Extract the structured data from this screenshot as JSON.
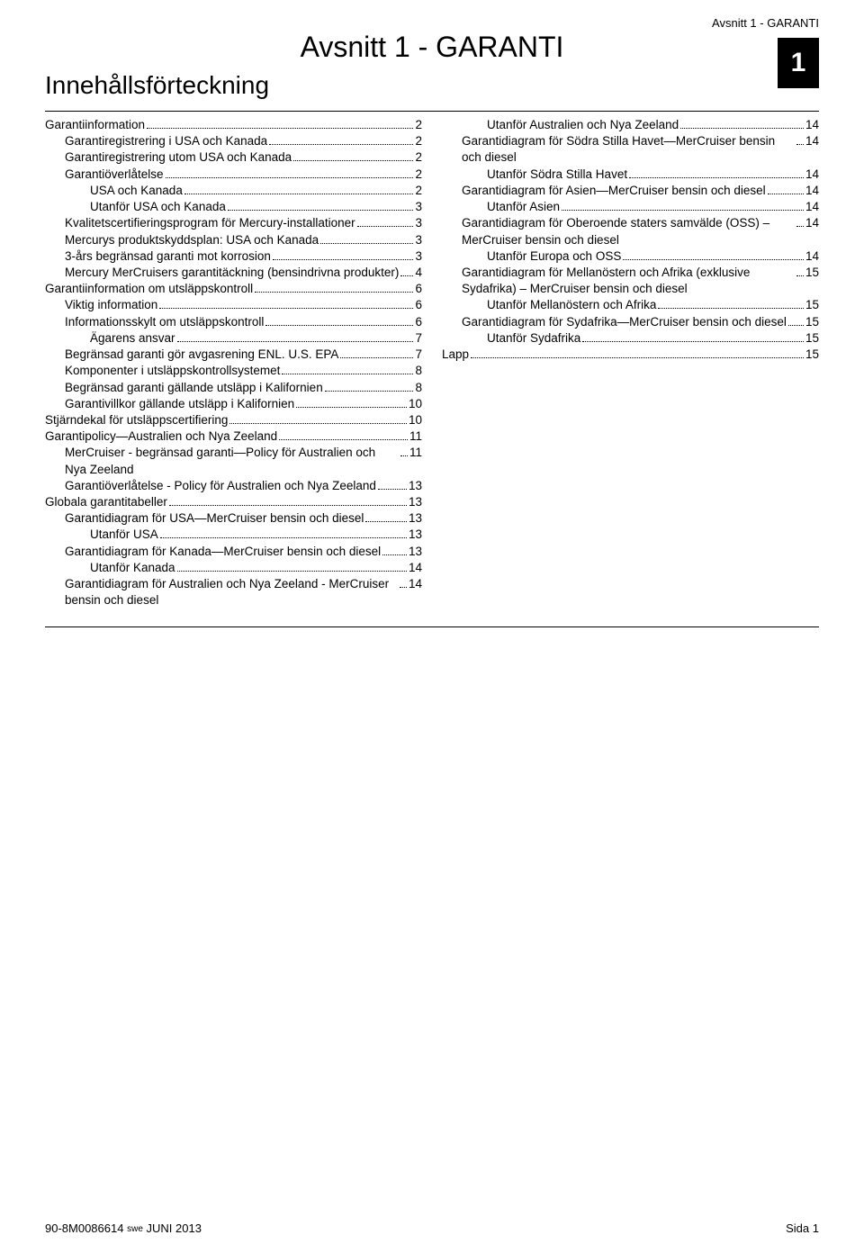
{
  "header": {
    "running_head": "Avsnitt 1 - GARANTI",
    "section_title": "Avsnitt 1 - GARANTI",
    "toc_title": "Innehållsförteckning",
    "page_badge": "1"
  },
  "footer": {
    "doc_id": "90-8M0086614",
    "lang": "swe",
    "date": "JUNI  2013",
    "page_label": "Sida  1"
  },
  "toc": [
    {
      "indent": 0,
      "label": "Garantiinformation",
      "page": "2"
    },
    {
      "indent": 1,
      "label": "Garantiregistrering i USA och Kanada",
      "page": "2"
    },
    {
      "indent": 1,
      "label": "Garantiregistrering utom USA och Kanada",
      "page": "2"
    },
    {
      "indent": 1,
      "label": "Garantiöverlåtelse",
      "page": "2"
    },
    {
      "indent": 2,
      "label": "USA och Kanada",
      "page": "2"
    },
    {
      "indent": 2,
      "label": "Utanför USA och Kanada",
      "page": "3"
    },
    {
      "indent": 1,
      "label": "Kvalitetscertifieringsprogram för Mercury‑installationer",
      "page": "3"
    },
    {
      "indent": 1,
      "label": "Mercurys produktskyddsplan: USA och Kanada",
      "page": "3"
    },
    {
      "indent": 1,
      "label": "3‑års begränsad garanti mot korrosion",
      "page": "3"
    },
    {
      "indent": 1,
      "label": "Mercury MerCruisers garantitäckning (bensindrivna produkter)",
      "page": "4"
    },
    {
      "indent": 0,
      "label": "Garantiinformation om utsläppskontroll",
      "page": "6"
    },
    {
      "indent": 1,
      "label": "Viktig information",
      "page": "6"
    },
    {
      "indent": 1,
      "label": "Informationsskylt om utsläppskontroll",
      "page": "6"
    },
    {
      "indent": 2,
      "label": "Ägarens ansvar",
      "page": "7"
    },
    {
      "indent": 1,
      "label": "Begränsad garanti gör avgasrening ENL. U.S. EPA",
      "page": "7"
    },
    {
      "indent": 1,
      "label": "Komponenter i utsläppskontrollsystemet",
      "page": "8"
    },
    {
      "indent": 1,
      "label": "Begränsad garanti gällande utsläpp i Kalifornien",
      "page": "8"
    },
    {
      "indent": 1,
      "label": "Garantivillkor gällande utsläpp i Kalifornien",
      "page": "10"
    },
    {
      "indent": 0,
      "label": "Stjärndekal för utsläppscertifiering",
      "page": "10"
    },
    {
      "indent": 0,
      "label": "Garantipolicy—Australien och Nya Zeeland",
      "page": "11"
    },
    {
      "indent": 1,
      "label": "MerCruiser ‑ begränsad garanti—Policy för Australien och Nya Zeeland",
      "page": "11"
    },
    {
      "indent": 1,
      "label": "Garantiöverlåtelse ‑ Policy för Australien och Nya Zeeland",
      "page": "13"
    },
    {
      "indent": 0,
      "label": "Globala garantitabeller",
      "page": "13"
    },
    {
      "indent": 1,
      "label": "Garantidiagram för USA—MerCruiser bensin och diesel",
      "page": "13"
    },
    {
      "indent": 2,
      "label": "Utanför USA",
      "page": "13"
    },
    {
      "indent": 1,
      "label": "Garantidiagram för Kanada—MerCruiser bensin och diesel",
      "page": "13"
    },
    {
      "indent": 2,
      "label": "Utanför Kanada",
      "page": "14"
    },
    {
      "indent": 1,
      "label": "Garantidiagram för Australien och Nya Zeeland ‑ MerCruiser bensin och diesel",
      "page": "14"
    },
    {
      "indent": 2,
      "label": "Utanför Australien och Nya Zeeland",
      "page": "14"
    },
    {
      "indent": 1,
      "label": "Garantidiagram för Södra Stilla Havet—MerCruiser bensin och diesel",
      "page": "14"
    },
    {
      "indent": 2,
      "label": "Utanför Södra Stilla Havet",
      "page": "14"
    },
    {
      "indent": 1,
      "label": "Garantidiagram för Asien—MerCruiser bensin och diesel",
      "page": "14"
    },
    {
      "indent": 2,
      "label": "Utanför Asien",
      "page": "14"
    },
    {
      "indent": 1,
      "label": "Garantidiagram för Oberoende staters samvälde (OSS) – MerCruiser bensin och diesel",
      "page": "14"
    },
    {
      "indent": 2,
      "label": "Utanför Europa och OSS",
      "page": "14"
    },
    {
      "indent": 1,
      "label": "Garantidiagram för Mellanöstern och Afrika (exklusive Sydafrika) – MerCruiser bensin och diesel",
      "page": "15"
    },
    {
      "indent": 2,
      "label": "Utanför Mellanöstern och Afrika",
      "page": "15"
    },
    {
      "indent": 1,
      "label": "Garantidiagram för Sydafrika—MerCruiser bensin och diesel",
      "page": "15"
    },
    {
      "indent": 2,
      "label": "Utanför Sydafrika",
      "page": "15"
    },
    {
      "indent": 0,
      "label": "Lapp",
      "page": "15"
    }
  ]
}
